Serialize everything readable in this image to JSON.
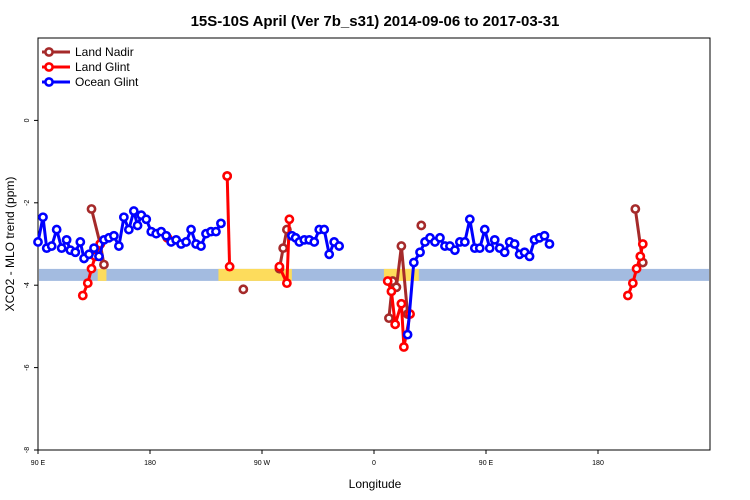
{
  "chart_data": {
    "type": "line",
    "title": "15S-10S April (Ver 7b_s31)   2014-09-06 to 2017-03-31",
    "xlabel": "Longitude",
    "ylabel": "XCO2 - MLO trend (ppm)",
    "xlim": [
      -90,
      180
    ],
    "ylim": [
      -8,
      2
    ],
    "xticks": [
      {
        "value": -90,
        "label": "90 E"
      },
      {
        "value": -45,
        "label": "180"
      },
      {
        "value": 0,
        "label": "90 W"
      },
      {
        "value": 45,
        "label": "0"
      },
      {
        "value": 90,
        "label": "90 E"
      },
      {
        "value": 135,
        "label": "180"
      }
    ],
    "yticks": [
      {
        "value": -8,
        "label": "-8"
      },
      {
        "value": -6,
        "label": "-6"
      },
      {
        "value": -4,
        "label": "-4"
      },
      {
        "value": -2,
        "label": "-2"
      },
      {
        "value": 0,
        "label": "0"
      }
    ],
    "grid": false,
    "legend_position": "top-left",
    "series": [
      {
        "name": "Land Nadir",
        "color": "#a52a2a",
        "segments": [
          [
            [
              -68.5,
              -2.15
            ],
            [
              -65,
              -3.0
            ],
            [
              -63.5,
              -3.5
            ]
          ],
          [
            [
              -38,
              -2.85
            ]
          ],
          [
            [
              -7.5,
              -4.1
            ]
          ],
          [
            [
              -14,
              -1.35
            ]
          ],
          [
            [
              7,
              -3.6
            ],
            [
              8.5,
              -3.1
            ],
            [
              10,
              -2.65
            ]
          ],
          [
            [
              51,
              -4.8
            ],
            [
              52.5,
              -3.9
            ],
            [
              54,
              -4.05
            ],
            [
              56,
              -3.05
            ],
            [
              58.5,
              -4.7
            ]
          ],
          [
            [
              64,
              -2.55
            ]
          ],
          [
            [
              150,
              -2.15
            ],
            [
              153,
              -3.45
            ]
          ]
        ]
      },
      {
        "name": "Land Glint",
        "color": "#ff0000",
        "segments": [
          [
            [
              -72,
              -4.25
            ],
            [
              -70,
              -3.95
            ],
            [
              -68.5,
              -3.6
            ],
            [
              -67,
              -3.3
            ],
            [
              -65,
              -3.0
            ]
          ],
          [
            [
              -38,
              -2.85
            ]
          ],
          [
            [
              -14,
              -1.35
            ],
            [
              -13,
              -3.55
            ]
          ],
          [
            [
              7,
              -3.55
            ],
            [
              10,
              -3.95
            ],
            [
              11,
              -2.4
            ]
          ],
          [
            [
              50.5,
              -3.9
            ],
            [
              52,
              -4.15
            ],
            [
              53.5,
              -4.95
            ],
            [
              56,
              -4.45
            ],
            [
              57,
              -5.5
            ],
            [
              59.5,
              -4.7
            ]
          ],
          [
            [
              147,
              -4.25
            ],
            [
              149,
              -3.95
            ],
            [
              150.5,
              -3.6
            ],
            [
              152,
              -3.3
            ],
            [
              153,
              -3.0
            ]
          ]
        ]
      },
      {
        "name": "Ocean Glint",
        "color": "#0000ff",
        "segments": [
          [
            [
              -90,
              -2.95
            ],
            [
              -88,
              -2.35
            ],
            [
              -86.5,
              -3.1
            ],
            [
              -84.5,
              -3.05
            ],
            [
              -82.5,
              -2.65
            ],
            [
              -80.5,
              -3.1
            ],
            [
              -78.5,
              -2.9
            ],
            [
              -77,
              -3.15
            ],
            [
              -75,
              -3.2
            ],
            [
              -73,
              -2.95
            ],
            [
              -71.5,
              -3.35
            ],
            [
              -69.5,
              -3.25
            ],
            [
              -67.5,
              -3.1
            ],
            [
              -65.5,
              -3.3
            ],
            [
              -63.5,
              -2.9
            ],
            [
              -61.5,
              -2.85
            ],
            [
              -59.5,
              -2.8
            ],
            [
              -57.5,
              -3.05
            ],
            [
              -55.5,
              -2.35
            ],
            [
              -53.5,
              -2.65
            ],
            [
              -51.5,
              -2.2
            ],
            [
              -50,
              -2.55
            ],
            [
              -48.5,
              -2.3
            ],
            [
              -46.5,
              -2.4
            ],
            [
              -44.5,
              -2.7
            ],
            [
              -42.5,
              -2.75
            ],
            [
              -40.5,
              -2.7
            ],
            [
              -38.5,
              -2.8
            ],
            [
              -36.5,
              -2.95
            ],
            [
              -34.5,
              -2.9
            ],
            [
              -32.5,
              -3.0
            ],
            [
              -30.5,
              -2.95
            ],
            [
              -28.5,
              -2.65
            ],
            [
              -26.5,
              -3.0
            ],
            [
              -24.5,
              -3.05
            ],
            [
              -22.5,
              -2.75
            ],
            [
              -20.5,
              -2.7
            ],
            [
              -18.5,
              -2.7
            ],
            [
              -16.5,
              -2.5
            ]
          ],
          [
            [
              12,
              -2.8
            ],
            [
              13.5,
              -2.85
            ],
            [
              15,
              -2.95
            ],
            [
              17,
              -2.9
            ],
            [
              19,
              -2.9
            ],
            [
              21,
              -2.95
            ],
            [
              23,
              -2.65
            ],
            [
              25,
              -2.65
            ],
            [
              27,
              -3.25
            ],
            [
              29,
              -2.95
            ],
            [
              31,
              -3.05
            ]
          ],
          [
            [
              58.5,
              -5.2
            ],
            [
              61,
              -3.45
            ],
            [
              63.5,
              -3.2
            ],
            [
              65.5,
              -2.95
            ],
            [
              67.5,
              -2.85
            ],
            [
              69.5,
              -2.95
            ],
            [
              71.5,
              -2.85
            ],
            [
              73.5,
              -3.05
            ],
            [
              75.5,
              -3.05
            ],
            [
              77.5,
              -3.15
            ],
            [
              79.5,
              -2.95
            ],
            [
              81.5,
              -2.95
            ],
            [
              83.5,
              -2.4
            ],
            [
              85.5,
              -3.1
            ],
            [
              87.5,
              -3.1
            ],
            [
              89.5,
              -2.65
            ],
            [
              91.5,
              -3.1
            ],
            [
              93.5,
              -2.9
            ],
            [
              95.5,
              -3.1
            ],
            [
              97.5,
              -3.2
            ],
            [
              99.5,
              -2.95
            ],
            [
              101.5,
              -3.0
            ],
            [
              103.5,
              -3.25
            ],
            [
              105.5,
              -3.2
            ],
            [
              107.5,
              -3.3
            ],
            [
              109.5,
              -2.9
            ],
            [
              111.5,
              -2.85
            ],
            [
              113.5,
              -2.8
            ],
            [
              115.5,
              -3.0
            ]
          ]
        ]
      }
    ],
    "land_mask": {
      "y": -3.75,
      "land_color": "#fddc5c",
      "ocean_color": "#a3bbe0",
      "land_ranges": [
        [
          -66,
          -62.5
        ],
        [
          -17.5,
          12
        ],
        [
          49,
          63
        ]
      ]
    }
  }
}
